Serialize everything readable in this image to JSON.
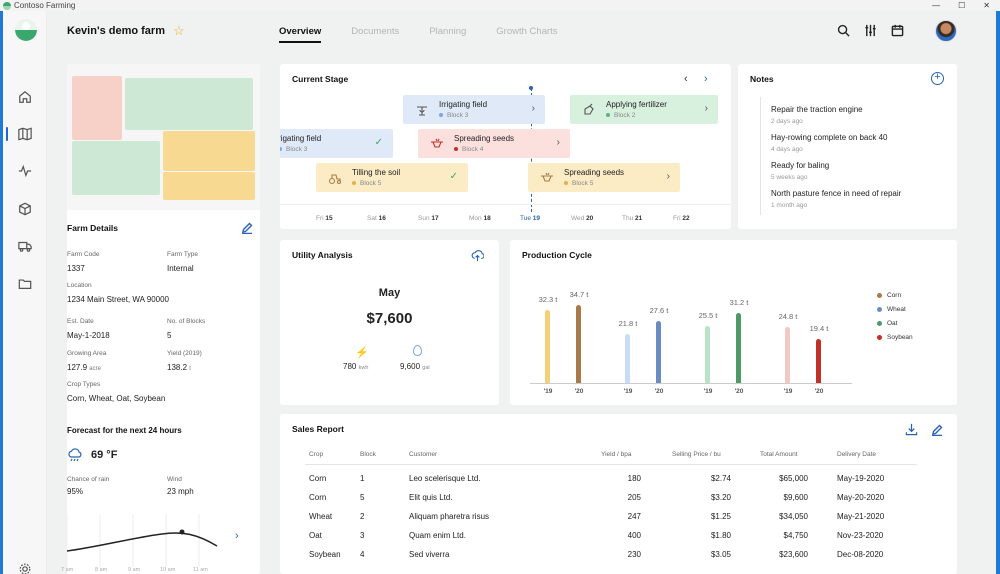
{
  "window": {
    "title": "Contoso Farming",
    "controls": [
      "—",
      "☐",
      "✕"
    ]
  },
  "header": {
    "farm_title": "Kevin's demo farm",
    "tabs": [
      {
        "label": "Overview"
      },
      {
        "label": "Documents"
      },
      {
        "label": "Planning"
      },
      {
        "label": "Growth Charts"
      }
    ],
    "icons": [
      "search-icon",
      "filter-icon",
      "calendar-icon"
    ]
  },
  "farm": {
    "details_title": "Farm Details",
    "fields": [
      {
        "label": "Farm Code",
        "value": "1337"
      },
      {
        "label": "Farm Type",
        "value": "Internal"
      },
      {
        "label": "Location",
        "value": "1234 Main Street, WA 90000"
      },
      {
        "label": "Est. Date",
        "value": "May-1-2018"
      },
      {
        "label": "No. of Blocks",
        "value": "5"
      },
      {
        "label": "Growing Area",
        "value": "127.9",
        "unit": "acre"
      },
      {
        "label": "Yield (2019)",
        "value": "138.2",
        "unit": "t"
      },
      {
        "label": "Crop Types",
        "value": "Corn, Wheat, Oat, Soybean"
      }
    ],
    "forecast": {
      "title": "Forecast for the next 24 hours",
      "temp": "69 °F",
      "rain_label": "Chance of rain",
      "rain_value": "95%",
      "wind_label": "Wind",
      "wind_value": "23 mph",
      "times": [
        "7 am",
        "8 am",
        "9 am",
        "10 am",
        "11 am"
      ]
    }
  },
  "stage": {
    "title": "Current Stage",
    "tasks": [
      {
        "title": "Irrigating field",
        "block": "Block 3",
        "status": "next"
      },
      {
        "title": "Applying fertilizer",
        "block": "Block 2",
        "status": "next"
      },
      {
        "title": "rigating field",
        "block": "Block 3",
        "status": "done"
      },
      {
        "title": "Spreading seeds",
        "block": "Block 4",
        "status": "next"
      },
      {
        "title": "Tilling the soil",
        "block": "Block 5",
        "status": "done"
      },
      {
        "title": "Spreading seeds",
        "block": "Block 5",
        "status": "next"
      }
    ],
    "days": [
      {
        "dow": "Fri",
        "num": "15"
      },
      {
        "dow": "Sat",
        "num": "16"
      },
      {
        "dow": "Sun",
        "num": "17"
      },
      {
        "dow": "Mon",
        "num": "18"
      },
      {
        "dow": "Tue",
        "num": "19"
      },
      {
        "dow": "Wed",
        "num": "20"
      },
      {
        "dow": "Thu",
        "num": "21"
      },
      {
        "dow": "Fri",
        "num": "22"
      }
    ]
  },
  "notes": {
    "title": "Notes",
    "items": [
      {
        "text": "Repair the traction engine",
        "time": "2 days ago"
      },
      {
        "text": "Hay-rowing complete on back 40",
        "time": "4 days ago"
      },
      {
        "text": "Ready for baling",
        "time": "5 weeks ago"
      },
      {
        "text": "North pasture fence in need of repair",
        "time": "1 month ago"
      }
    ]
  },
  "utility": {
    "title": "Utility Analysis",
    "month": "May",
    "total": "$7,600",
    "energy_value": "780",
    "energy_unit": "kwh",
    "water_value": "9,600",
    "water_unit": "gal"
  },
  "chart_data": {
    "type": "bar",
    "title": "Production Cycle",
    "categories": [
      "'19",
      "'20"
    ],
    "series": [
      {
        "name": "Corn",
        "color": "#f3cf76",
        "color20": "#a87a4a",
        "values": [
          32.3,
          34.7
        ],
        "labels": [
          "32.3 t",
          "34.7 t"
        ]
      },
      {
        "name": "Wheat",
        "color": "#c9dcf5",
        "color20": "#6b8cc0",
        "values": [
          21.8,
          27.6
        ],
        "labels": [
          "21.8 t",
          "27.6 t"
        ]
      },
      {
        "name": "Oat",
        "color": "#b9e3c6",
        "color20": "#4d9a66",
        "values": [
          25.5,
          31.2
        ],
        "labels": [
          "25.5 t",
          "31.2 t"
        ]
      },
      {
        "name": "Soybean",
        "color": "#f2c9c2",
        "color20": "#c2302a",
        "values": [
          24.8,
          19.4
        ],
        "labels": [
          "24.8 t",
          "19.4 t"
        ]
      }
    ],
    "ylim": [
      0,
      40
    ],
    "legend": "right",
    "grid": false
  },
  "sales": {
    "title": "Sales Report",
    "columns": [
      "Crop",
      "Block",
      "Customer",
      "Yield / bpa",
      "Selling Price / bu",
      "Total Amount",
      "Delivery Date"
    ],
    "rows": [
      [
        "Corn",
        "1",
        "Leo scelerisque Ltd.",
        "180",
        "$2.74",
        "$65,000",
        "May-19-2020"
      ],
      [
        "Corn",
        "5",
        "Elit quis Ltd.",
        "205",
        "$3.20",
        "$9,600",
        "May-20-2020"
      ],
      [
        "Wheat",
        "2",
        "Aliquam pharetra risus",
        "247",
        "$1.25",
        "$34,050",
        "May-21-2020"
      ],
      [
        "Oat",
        "3",
        "Quam enim Ltd.",
        "400",
        "$1.80",
        "$4,750",
        "Nov-23-2020"
      ],
      [
        "Soybean",
        "4",
        "Sed viverra",
        "230",
        "$3.05",
        "$23,600",
        "Dec-08-2020"
      ]
    ]
  }
}
